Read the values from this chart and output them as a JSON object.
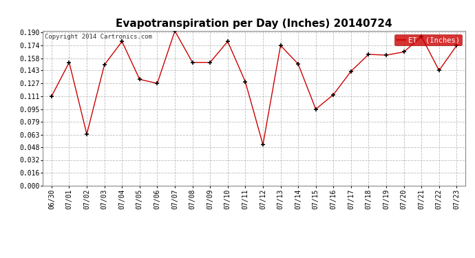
{
  "title": "Evapotranspiration per Day (Inches) 20140724",
  "copyright": "Copyright 2014 Cartronics.com",
  "legend_label": "ET  (Inches)",
  "dates": [
    "06/30",
    "07/01",
    "07/02",
    "07/03",
    "07/04",
    "07/05",
    "07/06",
    "07/07",
    "07/08",
    "07/09",
    "07/10",
    "07/11",
    "07/12",
    "07/13",
    "07/14",
    "07/15",
    "07/16",
    "07/17",
    "07/18",
    "07/19",
    "07/20",
    "07/21",
    "07/22",
    "07/23"
  ],
  "values": [
    0.111,
    0.153,
    0.064,
    0.15,
    0.179,
    0.132,
    0.127,
    0.192,
    0.153,
    0.153,
    0.179,
    0.129,
    0.051,
    0.174,
    0.151,
    0.095,
    0.113,
    0.142,
    0.163,
    0.162,
    0.166,
    0.185,
    0.143,
    0.174
  ],
  "line_color": "#cc0000",
  "marker_color": "#000000",
  "legend_bg": "#cc0000",
  "legend_text_color": "#ffffff",
  "ylim": [
    0.0,
    0.192
  ],
  "yticks": [
    0.0,
    0.016,
    0.032,
    0.048,
    0.063,
    0.079,
    0.095,
    0.111,
    0.127,
    0.143,
    0.158,
    0.174,
    0.19
  ],
  "bg_color": "#ffffff",
  "plot_bg": "#ffffff",
  "grid_color": "#bbbbbb",
  "title_fontsize": 11,
  "copyright_fontsize": 6.5,
  "tick_fontsize": 7,
  "legend_fontsize": 7.5
}
